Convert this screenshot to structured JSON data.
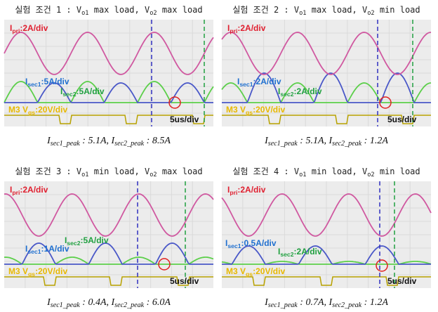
{
  "panels": [
    {
      "title": [
        "실험 조건 1 : V",
        "o1",
        " max load, V",
        "o2",
        " max load"
      ],
      "pri_label": [
        "I",
        "pri",
        ":2A/div"
      ],
      "sec1_label": [
        "I",
        "sec1",
        ":5A/div"
      ],
      "sec2_label": [
        "I",
        "sec2",
        ":5A/div"
      ],
      "gate_label": [
        "M3 V",
        "gs",
        ":20V/div"
      ],
      "time_label": "5us/div",
      "caption": [
        "I",
        "sec1_peak",
        " : 5.1A, I",
        "sec2_peak",
        " : 8.5A"
      ]
    },
    {
      "title": [
        "실험 조건 2 : V",
        "o1",
        " max load, V",
        "o2",
        " min load"
      ],
      "pri_label": [
        "I",
        "pri",
        ":2A/div"
      ],
      "sec1_label": [
        "I",
        "sec1",
        ":2A/div"
      ],
      "sec2_label": [
        "I",
        "sec2",
        ":2A/div"
      ],
      "gate_label": [
        "M3 V",
        "gs",
        ":20V/div"
      ],
      "time_label": "5us/div",
      "caption": [
        "I",
        "sec1_peak",
        " : 5.1A, I",
        "sec2_peak",
        " : 1.2A"
      ]
    },
    {
      "title": [
        "실험 조건 3 : V",
        "o1",
        " min load, V",
        "o2",
        " max load"
      ],
      "pri_label": [
        "I",
        "pri",
        ":2A/div"
      ],
      "sec1_label": [
        "I",
        "sec1",
        ":1A/div"
      ],
      "sec2_label": [
        "I",
        "sec2",
        ":5A/div"
      ],
      "gate_label": [
        "M3 V",
        "gs",
        ":20V/div"
      ],
      "time_label": "5us/div",
      "caption": [
        "I",
        "sec1_peak",
        " : 0.4A, I",
        "sec2_peak",
        " : 6.0A"
      ]
    },
    {
      "title": [
        "실험 조건 4 : V",
        "o1",
        " min load, V",
        "o2",
        " min load"
      ],
      "pri_label": [
        "I",
        "pri",
        ":2A/div"
      ],
      "sec1_label": [
        "I",
        "sec1",
        ":0.5A/div"
      ],
      "sec2_label": [
        "I",
        "sec2",
        ":2A/div"
      ],
      "gate_label": [
        "M3 V",
        "gs",
        ":20V/div"
      ],
      "time_label": "5us/div",
      "caption": [
        "I",
        "sec1_peak",
        " : 0.7A, I",
        "sec2_peak",
        " : 1.2A"
      ]
    }
  ]
}
